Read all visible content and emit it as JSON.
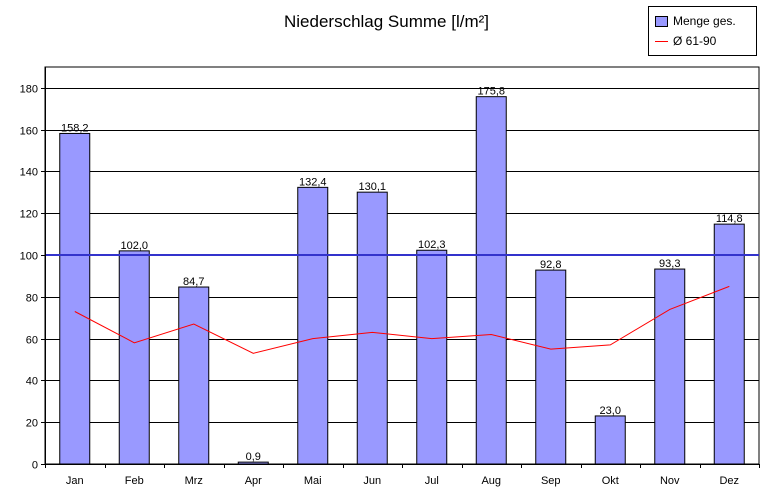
{
  "chart_data": {
    "type": "bar",
    "title": "Niederschlag Summe [l/m²]",
    "xlabel": "",
    "ylabel": "",
    "categories": [
      "Jan",
      "Feb",
      "Mrz",
      "Apr",
      "Mai",
      "Jun",
      "Jul",
      "Aug",
      "Sep",
      "Okt",
      "Nov",
      "Dez"
    ],
    "series": [
      {
        "name": "Menge ges.",
        "type": "bar",
        "color": "#9999ff",
        "values": [
          158.2,
          102.0,
          84.7,
          0.9,
          132.4,
          130.1,
          102.3,
          175.8,
          92.8,
          23.0,
          93.3,
          114.8
        ],
        "labels": [
          "158,2",
          "102,0",
          "84,7",
          "0,9",
          "132,4",
          "130,1",
          "102,3",
          "175,8",
          "92,8",
          "23,0",
          "93,3",
          "114,8"
        ]
      },
      {
        "name": "Ø 61-90",
        "type": "line",
        "color": "#ff0000",
        "values": [
          73,
          58,
          67,
          53,
          60,
          63,
          60,
          62,
          55,
          57,
          74,
          85
        ]
      }
    ],
    "reference_line": {
      "value": 100,
      "color": "#3333cc"
    },
    "ylim": [
      0,
      190
    ],
    "yticks": [
      0,
      20,
      40,
      60,
      80,
      100,
      120,
      140,
      160,
      180
    ],
    "grid": true,
    "legend": "top-right"
  }
}
